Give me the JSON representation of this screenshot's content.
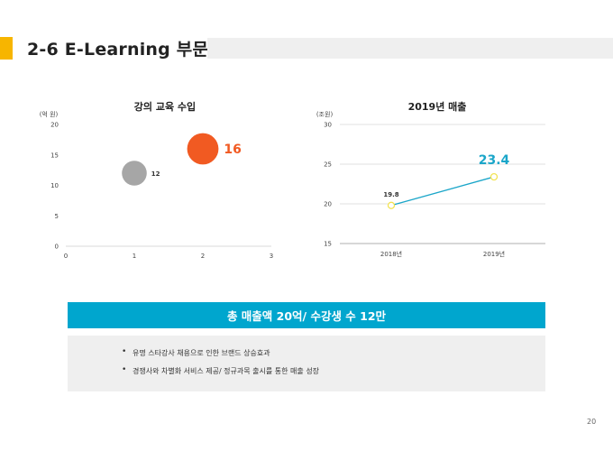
{
  "header": {
    "title": "2-6 E-Learning 부문"
  },
  "chart_data": [
    {
      "type": "scatter",
      "title": "강의 교육 수입",
      "unit_label": "(억 원)",
      "xlim": [
        0,
        3
      ],
      "ylim": [
        0,
        20
      ],
      "x_ticks": [
        "0",
        "1",
        "2",
        "3"
      ],
      "y_ticks": [
        "0",
        "5",
        "10",
        "15",
        "20"
      ],
      "points": [
        {
          "x": 1,
          "y": 12,
          "label": "12",
          "color": "#A6A6A6"
        },
        {
          "x": 2,
          "y": 16,
          "label": "16",
          "color": "#F15A22"
        }
      ]
    },
    {
      "type": "line",
      "title": "2019년 매출",
      "unit_label": "(조원)",
      "categories": [
        "2018년",
        "2019년"
      ],
      "values": [
        19.8,
        23.4
      ],
      "value_labels": [
        "19.8",
        "23.4"
      ],
      "ylim": [
        15,
        30
      ],
      "y_ticks": [
        "15",
        "20",
        "25",
        "30"
      ],
      "line_color": "#1BA6C9",
      "marker_color": "#F2E24A",
      "highlight_color": "#1BA6C9"
    }
  ],
  "banner": {
    "text": "총 매출액 20억/ 수강생 수 12만"
  },
  "bullets": [
    "유명 스타강사 채용으로 인한 브랜드 상승효과",
    "경쟁사와 차별화 서비스 제공/ 정규과목 출시를 통한 매출 성장"
  ],
  "page_number": "20"
}
